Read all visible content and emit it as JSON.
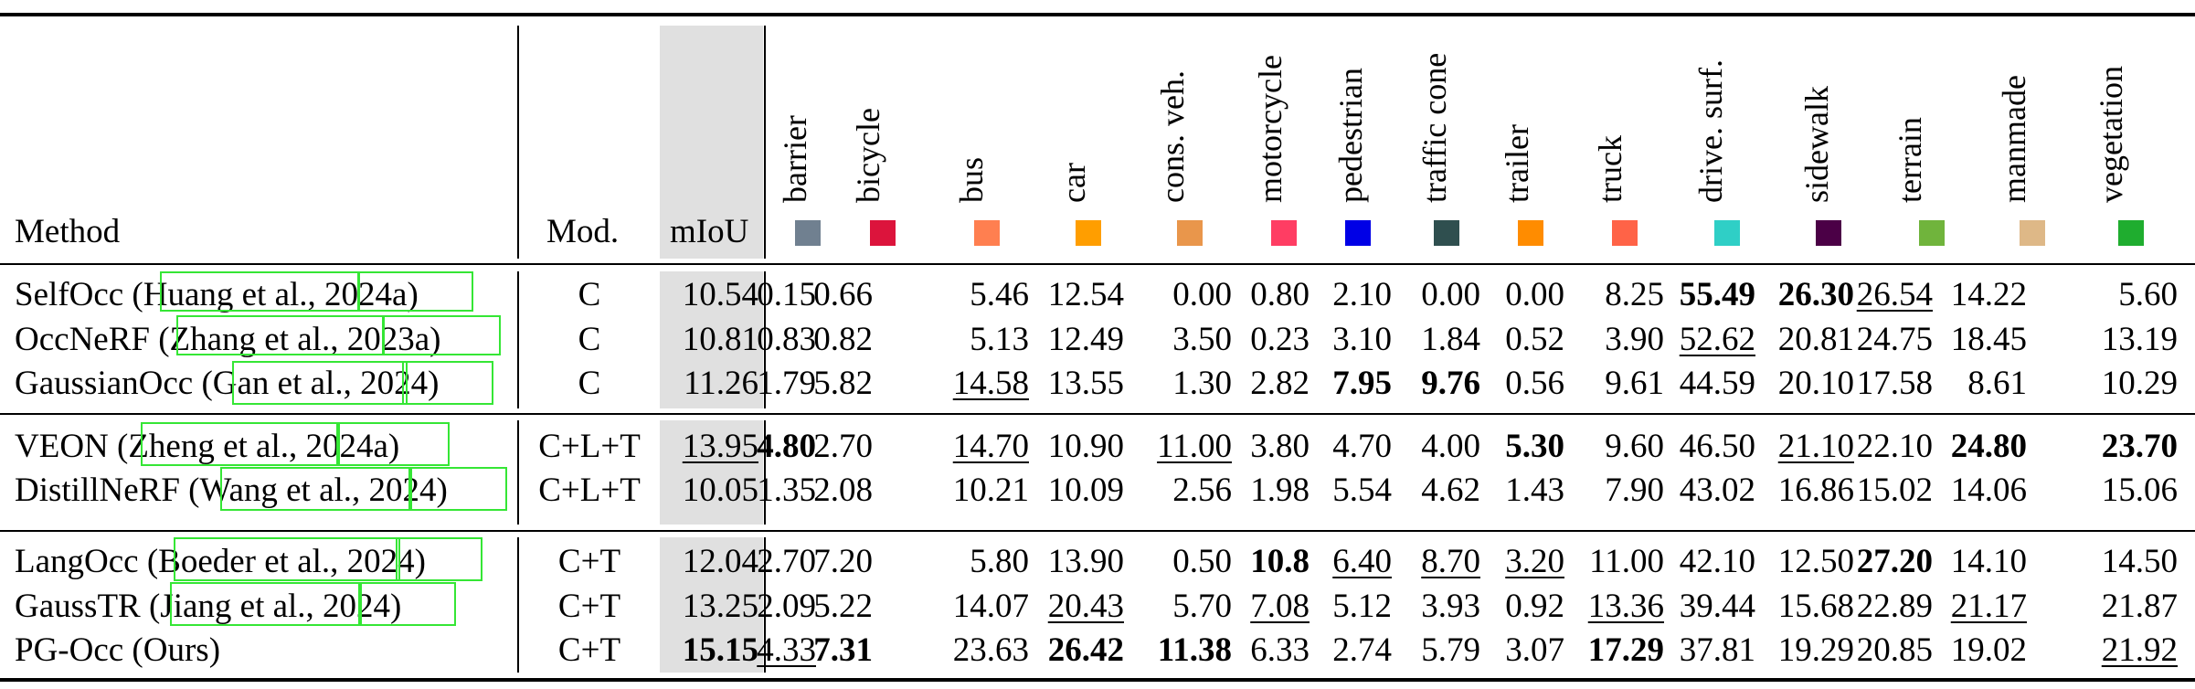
{
  "header": {
    "method": "Method",
    "mod": "Mod.",
    "miou": "mIoU",
    "classes": [
      {
        "name": "barrier",
        "color": "#708090"
      },
      {
        "name": "bicycle",
        "color": "#dc143c"
      },
      {
        "name": "bus",
        "color": "#ff7f50"
      },
      {
        "name": "car",
        "color": "#ff9e00"
      },
      {
        "name": "cons. veh.",
        "color": "#e9964b"
      },
      {
        "name": "motorcycle",
        "color": "#ff3d63"
      },
      {
        "name": "pedestrian",
        "color": "#0000e6"
      },
      {
        "name": "traffic cone",
        "color": "#2f4f4f"
      },
      {
        "name": "trailer",
        "color": "#ff8c00"
      },
      {
        "name": "truck",
        "color": "#ff6347"
      },
      {
        "name": "drive. surf.",
        "color": "#2fcfc6"
      },
      {
        "name": "sidewalk",
        "color": "#4b0046"
      },
      {
        "name": "terrain",
        "color": "#70b43c"
      },
      {
        "name": "manmade",
        "color": "#deb887"
      },
      {
        "name": "vegetation",
        "color": "#1fad2f"
      }
    ]
  },
  "groups": [
    [
      {
        "method": "SelfOcc (Huang et al., 2024a)",
        "mod": "C",
        "miou": "10.54",
        "vals": [
          "0.15",
          "0.66",
          "5.46",
          "12.54",
          "0.00",
          "0.80",
          "2.10",
          "0.00",
          "0.00",
          "8.25",
          "55.49",
          "26.30",
          "26.54",
          "14.22",
          "5.60"
        ],
        "bold": [
          10,
          11
        ],
        "under": [
          12
        ]
      },
      {
        "method": "OccNeRF (Zhang et al., 2023a)",
        "mod": "C",
        "miou": "10.81",
        "vals": [
          "0.83",
          "0.82",
          "5.13",
          "12.49",
          "3.50",
          "0.23",
          "3.10",
          "1.84",
          "0.52",
          "3.90",
          "52.62",
          "20.81",
          "24.75",
          "18.45",
          "13.19"
        ],
        "bold": [],
        "under": [
          10
        ]
      },
      {
        "method": "GaussianOcc (Gan et al., 2024)",
        "mod": "C",
        "miou": "11.26",
        "vals": [
          "1.79",
          "5.82",
          "14.58",
          "13.55",
          "1.30",
          "2.82",
          "7.95",
          "9.76",
          "0.56",
          "9.61",
          "44.59",
          "20.10",
          "17.58",
          "8.61",
          "10.29"
        ],
        "bold": [
          6,
          7
        ],
        "under": [
          2
        ]
      }
    ],
    [
      {
        "method": "VEON (Zheng et al., 2024a)",
        "mod": "C+L+T",
        "miou": "13.95",
        "miou_style": "under",
        "vals": [
          "4.80",
          "2.70",
          "14.70",
          "10.90",
          "11.00",
          "3.80",
          "4.70",
          "4.00",
          "5.30",
          "9.60",
          "46.50",
          "21.10",
          "22.10",
          "24.80",
          "23.70"
        ],
        "bold": [
          0,
          8,
          13,
          14
        ],
        "under": [
          2,
          4,
          11
        ]
      },
      {
        "method": "DistillNeRF (Wang et al., 2024)",
        "mod": "C+L+T",
        "miou": "10.05",
        "vals": [
          "1.35",
          "2.08",
          "10.21",
          "10.09",
          "2.56",
          "1.98",
          "5.54",
          "4.62",
          "1.43",
          "7.90",
          "43.02",
          "16.86",
          "15.02",
          "14.06",
          "15.06"
        ],
        "bold": [],
        "under": []
      }
    ],
    [
      {
        "method": "LangOcc (Boeder et al., 2024)",
        "mod": "C+T",
        "miou": "12.04",
        "vals": [
          "2.70",
          "7.20",
          "5.80",
          "13.90",
          "0.50",
          "10.8",
          "6.40",
          "8.70",
          "3.20",
          "11.00",
          "42.10",
          "12.50",
          "27.20",
          "14.10",
          "14.50"
        ],
        "bold": [
          5,
          12
        ],
        "under": [
          6,
          7,
          8
        ]
      },
      {
        "method": "GaussTR (Jiang et al., 2024)",
        "mod": "C+T",
        "miou": "13.25",
        "vals": [
          "2.09",
          "5.22",
          "14.07",
          "20.43",
          "5.70",
          "7.08",
          "5.12",
          "3.93",
          "0.92",
          "13.36",
          "39.44",
          "15.68",
          "22.89",
          "21.17",
          "21.87"
        ],
        "bold": [],
        "under": [
          3,
          5,
          9,
          13
        ]
      },
      {
        "method": "PG-Occ (Ours)",
        "mod": "C+T",
        "miou": "15.15",
        "miou_style": "bold",
        "vals": [
          "4.33",
          "7.31",
          "23.63",
          "26.42",
          "11.38",
          "6.33",
          "2.74",
          "5.79",
          "3.07",
          "17.29",
          "37.81",
          "19.29",
          "20.85",
          "19.02",
          "21.92"
        ],
        "bold": [
          1,
          3,
          4,
          9
        ],
        "under": [
          0,
          14
        ]
      }
    ]
  ]
}
